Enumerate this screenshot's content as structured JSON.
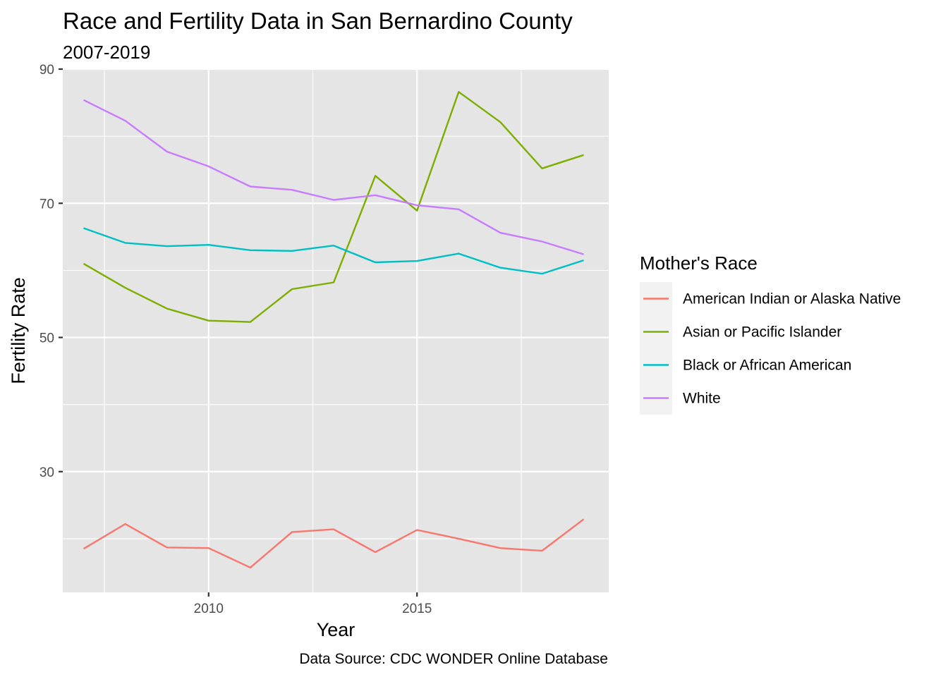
{
  "chart_data": {
    "type": "line",
    "title": "Race and Fertility Data in San Bernardino County",
    "subtitle": "2007-2019",
    "xlabel": "Year",
    "ylabel": "Fertility Rate",
    "caption": "Data Source: CDC WONDER Online Database",
    "x": [
      2007,
      2008,
      2009,
      2010,
      2011,
      2012,
      2013,
      2014,
      2015,
      2016,
      2017,
      2018,
      2019
    ],
    "xlim": [
      2006.5,
      2019.6
    ],
    "ylim": [
      12,
      90
    ],
    "x_major_ticks": [
      2010,
      2015
    ],
    "x_tick_labels": [
      "2010",
      "2015"
    ],
    "x_minor_ticks": [
      2007.5,
      2012.5,
      2017.5
    ],
    "y_major_ticks": [
      30,
      50,
      70,
      90
    ],
    "y_tick_labels": [
      "30",
      "50",
      "70",
      "90"
    ],
    "y_minor_ticks": [
      20,
      40,
      60,
      80
    ],
    "grid": true,
    "panel_background": "#e5e5e5",
    "legend": {
      "title": "Mother's Race",
      "position": "right",
      "key_background": "#f2f2f2"
    },
    "series": [
      {
        "name": "American Indian or Alaska Native",
        "color": "#f8766d",
        "values": [
          18.5,
          22.2,
          18.7,
          18.6,
          15.7,
          21.0,
          21.4,
          18.0,
          21.3,
          20.0,
          18.6,
          18.2,
          22.9
        ]
      },
      {
        "name": "Asian or Pacific Islander",
        "color": "#7cae00",
        "values": [
          61.0,
          57.4,
          54.3,
          52.5,
          52.3,
          57.2,
          58.2,
          74.1,
          68.9,
          86.6,
          82.1,
          75.2,
          77.2
        ]
      },
      {
        "name": "Black or African American",
        "color": "#00bfc4",
        "values": [
          66.3,
          64.1,
          63.6,
          63.8,
          63.0,
          62.9,
          63.7,
          61.2,
          61.4,
          62.5,
          60.4,
          59.5,
          61.5
        ]
      },
      {
        "name": "White",
        "color": "#c77cff",
        "values": [
          85.4,
          82.3,
          77.7,
          75.5,
          72.5,
          72.0,
          70.5,
          71.2,
          69.7,
          69.1,
          65.6,
          64.3,
          62.4
        ]
      }
    ]
  }
}
